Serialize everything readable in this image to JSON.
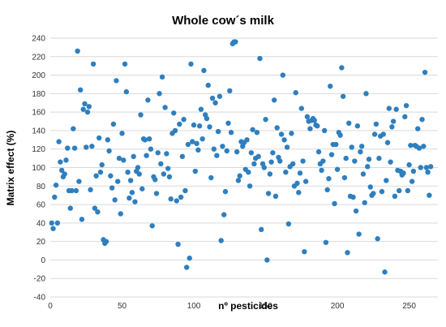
{
  "chart_data": {
    "type": "scatter",
    "title": "Whole cow´s milk",
    "xlabel": "nº pesticides",
    "ylabel": "Matrix effect (%)",
    "xlim": [
      0,
      270
    ],
    "ylim": [
      -40,
      240
    ],
    "xticks": [
      0,
      50,
      100,
      150,
      200,
      250
    ],
    "yticks": [
      -40,
      -20,
      0,
      20,
      40,
      60,
      80,
      100,
      120,
      140,
      160,
      180,
      200,
      220,
      240
    ],
    "grid": "horizontal",
    "legend": "none",
    "marker_color": "#2e7fbf",
    "points": [
      [
        1,
        40
      ],
      [
        2,
        34
      ],
      [
        3,
        68
      ],
      [
        4,
        81
      ],
      [
        5,
        40
      ],
      [
        6,
        128
      ],
      [
        7,
        106
      ],
      [
        8,
        97
      ],
      [
        9,
        90
      ],
      [
        10,
        93
      ],
      [
        11,
        108
      ],
      [
        12,
        121
      ],
      [
        13,
        75
      ],
      [
        14,
        56
      ],
      [
        15,
        75
      ],
      [
        16,
        142
      ],
      [
        17,
        121
      ],
      [
        18,
        75
      ],
      [
        19,
        226
      ],
      [
        20,
        85
      ],
      [
        21,
        184
      ],
      [
        22,
        44
      ],
      [
        23,
        163
      ],
      [
        24,
        169
      ],
      [
        25,
        122
      ],
      [
        26,
        160
      ],
      [
        27,
        166
      ],
      [
        28,
        76
      ],
      [
        29,
        123
      ],
      [
        30,
        212
      ],
      [
        31,
        56
      ],
      [
        32,
        91
      ],
      [
        33,
        52
      ],
      [
        34,
        132
      ],
      [
        35,
        95
      ],
      [
        36,
        103
      ],
      [
        37,
        22
      ],
      [
        38,
        18
      ],
      [
        39,
        20
      ],
      [
        40,
        130
      ],
      [
        41,
        118
      ],
      [
        42,
        91
      ],
      [
        43,
        78
      ],
      [
        44,
        147
      ],
      [
        45,
        65
      ],
      [
        46,
        194
      ],
      [
        47,
        85
      ],
      [
        48,
        110
      ],
      [
        49,
        50
      ],
      [
        50,
        137
      ],
      [
        51,
        108
      ],
      [
        52,
        212
      ],
      [
        53,
        182
      ],
      [
        54,
        95
      ],
      [
        55,
        67
      ],
      [
        56,
        86
      ],
      [
        57,
        73
      ],
      [
        58,
        112
      ],
      [
        59,
        63
      ],
      [
        60,
        96
      ],
      [
        61,
        100
      ],
      [
        62,
        93
      ],
      [
        63,
        157
      ],
      [
        64,
        77
      ],
      [
        65,
        131
      ],
      [
        66,
        130
      ],
      [
        67,
        113
      ],
      [
        68,
        173
      ],
      [
        69,
        131
      ],
      [
        70,
        120
      ],
      [
        71,
        37
      ],
      [
        72,
        90
      ],
      [
        73,
        87
      ],
      [
        74,
        72
      ],
      [
        75,
        116
      ],
      [
        76,
        180
      ],
      [
        77,
        104
      ],
      [
        78,
        198
      ],
      [
        79,
        93
      ],
      [
        80,
        165
      ],
      [
        81,
        115
      ],
      [
        82,
        99
      ],
      [
        83,
        90
      ],
      [
        84,
        66
      ],
      [
        85,
        137
      ],
      [
        86,
        159
      ],
      [
        87,
        140
      ],
      [
        88,
        64
      ],
      [
        89,
        17
      ],
      [
        90,
        147
      ],
      [
        91,
        68
      ],
      [
        92,
        112
      ],
      [
        93,
        152
      ],
      [
        94,
        75
      ],
      [
        95,
        -8
      ],
      [
        96,
        125
      ],
      [
        97,
        2
      ],
      [
        98,
        212
      ],
      [
        99,
        128
      ],
      [
        100,
        146
      ],
      [
        101,
        96
      ],
      [
        102,
        126
      ],
      [
        103,
        119
      ],
      [
        104,
        145
      ],
      [
        105,
        163
      ],
      [
        106,
        131
      ],
      [
        107,
        205
      ],
      [
        108,
        157
      ],
      [
        109,
        153
      ],
      [
        110,
        189
      ],
      [
        111,
        144
      ],
      [
        112,
        89
      ],
      [
        113,
        175
      ],
      [
        114,
        120
      ],
      [
        115,
        170
      ],
      [
        116,
        113
      ],
      [
        117,
        139
      ],
      [
        118,
        177
      ],
      [
        119,
        21
      ],
      [
        120,
        123
      ],
      [
        121,
        49
      ],
      [
        122,
        74
      ],
      [
        123,
        118
      ],
      [
        124,
        148
      ],
      [
        125,
        183
      ],
      [
        126,
        138
      ],
      [
        127,
        234
      ],
      [
        128,
        236
      ],
      [
        129,
        236
      ],
      [
        130,
        117
      ],
      [
        131,
        86
      ],
      [
        132,
        91
      ],
      [
        133,
        128
      ],
      [
        134,
        123
      ],
      [
        135,
        127
      ],
      [
        136,
        98
      ],
      [
        137,
        130
      ],
      [
        138,
        95
      ],
      [
        139,
        80
      ],
      [
        140,
        116
      ],
      [
        141,
        141
      ],
      [
        142,
        104
      ],
      [
        143,
        110
      ],
      [
        144,
        138
      ],
      [
        145,
        112
      ],
      [
        146,
        218
      ],
      [
        147,
        33
      ],
      [
        148,
        104
      ],
      [
        149,
        100
      ],
      [
        150,
        152
      ],
      [
        151,
        0
      ],
      [
        152,
        72
      ],
      [
        153,
        93
      ],
      [
        154,
        106
      ],
      [
        155,
        116
      ],
      [
        156,
        173
      ],
      [
        157,
        69
      ],
      [
        158,
        143
      ],
      [
        159,
        111
      ],
      [
        160,
        107
      ],
      [
        161,
        136
      ],
      [
        162,
        200
      ],
      [
        163,
        130
      ],
      [
        164,
        95
      ],
      [
        165,
        122
      ],
      [
        166,
        39
      ],
      [
        167,
        101
      ],
      [
        168,
        137
      ],
      [
        169,
        104
      ],
      [
        170,
        80
      ],
      [
        171,
        181
      ],
      [
        172,
        83
      ],
      [
        173,
        73
      ],
      [
        174,
        94
      ],
      [
        175,
        164
      ],
      [
        176,
        107
      ],
      [
        177,
        9
      ],
      [
        178,
        85
      ],
      [
        179,
        155
      ],
      [
        180,
        150
      ],
      [
        181,
        142
      ],
      [
        182,
        151
      ],
      [
        183,
        153
      ],
      [
        184,
        151
      ],
      [
        185,
        146
      ],
      [
        186,
        145
      ],
      [
        187,
        117
      ],
      [
        188,
        104
      ],
      [
        189,
        97
      ],
      [
        190,
        107
      ],
      [
        191,
        140
      ],
      [
        192,
        19
      ],
      [
        193,
        76
      ],
      [
        194,
        88
      ],
      [
        195,
        188
      ],
      [
        196,
        114
      ],
      [
        197,
        125
      ],
      [
        198,
        61
      ],
      [
        199,
        125
      ],
      [
        200,
        98
      ],
      [
        201,
        138
      ],
      [
        202,
        135
      ],
      [
        203,
        208
      ],
      [
        204,
        177
      ],
      [
        205,
        89
      ],
      [
        206,
        110
      ],
      [
        207,
        8
      ],
      [
        208,
        148
      ],
      [
        209,
        69
      ],
      [
        210,
        122
      ],
      [
        211,
        68
      ],
      [
        212,
        107
      ],
      [
        213,
        53
      ],
      [
        214,
        145
      ],
      [
        215,
        28
      ],
      [
        216,
        117
      ],
      [
        217,
        123
      ],
      [
        218,
        93
      ],
      [
        219,
        62
      ],
      [
        220,
        180
      ],
      [
        221,
        101
      ],
      [
        222,
        109
      ],
      [
        223,
        79
      ],
      [
        224,
        70
      ],
      [
        225,
        72
      ],
      [
        226,
        136
      ],
      [
        227,
        147
      ],
      [
        228,
        23
      ],
      [
        229,
        110
      ],
      [
        230,
        134
      ],
      [
        231,
        74
      ],
      [
        232,
        136
      ],
      [
        233,
        -13
      ],
      [
        234,
        86
      ],
      [
        235,
        127
      ],
      [
        236,
        164
      ],
      [
        237,
        106
      ],
      [
        238,
        144
      ],
      [
        239,
        150
      ],
      [
        240,
        69
      ],
      [
        241,
        163
      ],
      [
        242,
        97
      ],
      [
        243,
        75
      ],
      [
        244,
        96
      ],
      [
        245,
        92
      ],
      [
        246,
        94
      ],
      [
        247,
        155
      ],
      [
        248,
        167
      ],
      [
        249,
        75
      ],
      [
        250,
        103
      ],
      [
        251,
        124
      ],
      [
        252,
        85
      ],
      [
        253,
        96
      ],
      [
        254,
        124
      ],
      [
        255,
        123
      ],
      [
        256,
        142
      ],
      [
        257,
        121
      ],
      [
        258,
        100
      ],
      [
        259,
        152
      ],
      [
        260,
        123
      ],
      [
        261,
        203
      ],
      [
        262,
        100
      ],
      [
        263,
        95
      ],
      [
        264,
        70
      ],
      [
        265,
        101
      ]
    ]
  }
}
